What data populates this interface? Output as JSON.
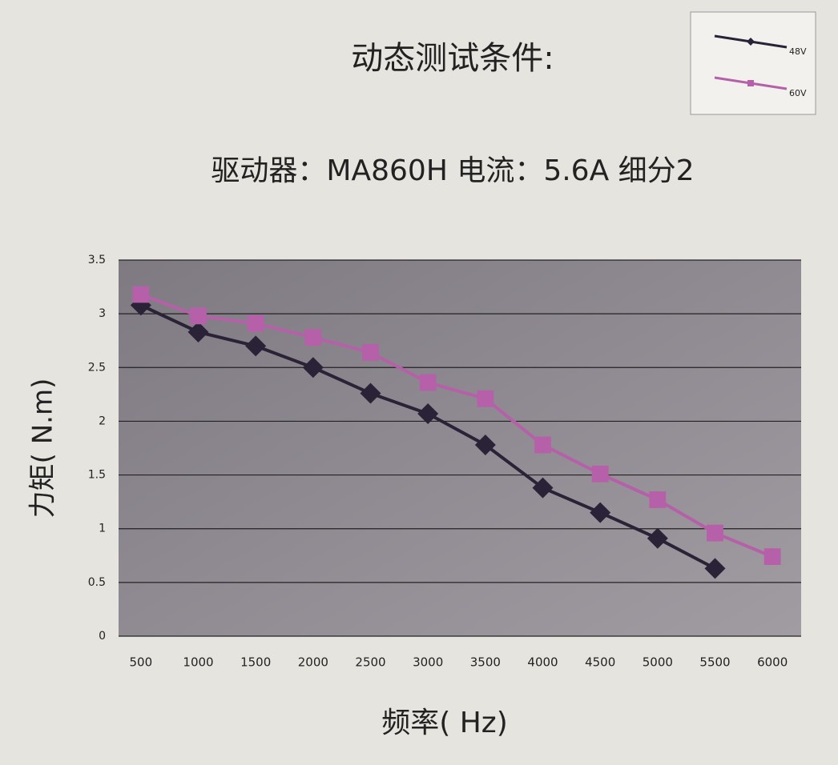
{
  "chart_data": {
    "type": "line",
    "title": "动态测试条件:",
    "subtitle": "驱动器：MA860H 电流：5.6A  细分2",
    "xlabel": "频率( Hz)",
    "ylabel": "力矩( N.m)",
    "categories": [
      "500",
      "1000",
      "1500",
      "2000",
      "2500",
      "3000",
      "3500",
      "4000",
      "4500",
      "5000",
      "5500",
      "6000"
    ],
    "series": [
      {
        "name": "48V",
        "color": "#2a2338",
        "marker": "diamond",
        "values": [
          3.08,
          2.83,
          2.7,
          2.5,
          2.26,
          2.07,
          1.78,
          1.38,
          1.15,
          0.91,
          0.63,
          null
        ]
      },
      {
        "name": "60V",
        "color": "#b560a8",
        "marker": "square",
        "values": [
          3.18,
          2.98,
          2.91,
          2.78,
          2.64,
          2.36,
          2.21,
          1.78,
          1.51,
          1.27,
          0.96,
          0.74
        ]
      }
    ],
    "ylim": [
      0,
      3.5
    ],
    "yticks": [
      0,
      0.5,
      1,
      1.5,
      2,
      2.5,
      3,
      3.5
    ],
    "grid": true,
    "legend": "top-right"
  }
}
